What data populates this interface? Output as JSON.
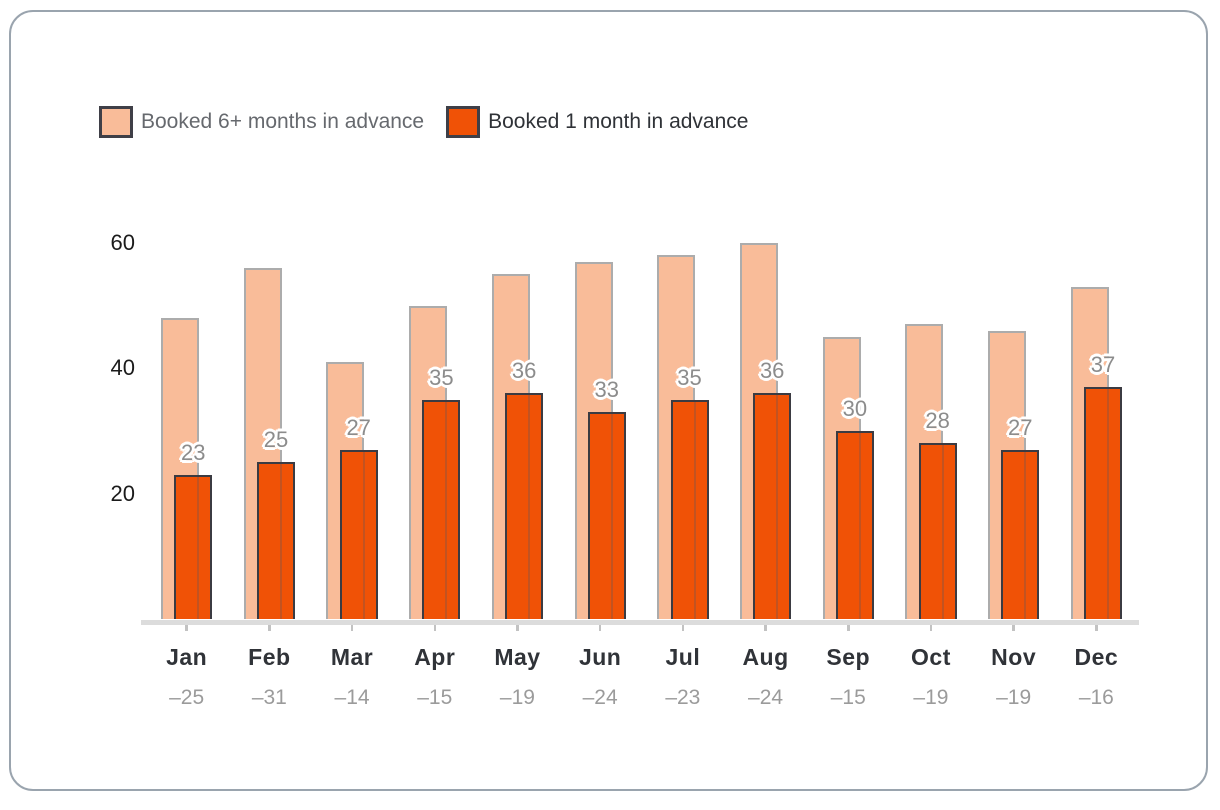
{
  "legend": {
    "items": [
      {
        "id": "booked-6plus",
        "label": "Booked 6+ months in advance",
        "swatch_color": "#F9BC99",
        "swatch_border": "#3F3F47",
        "label_color": "#66696E"
      },
      {
        "id": "booked-1month",
        "label": "Booked 1 month in advance",
        "swatch_color": "#F05206",
        "swatch_border": "#3F3F47",
        "label_color": "#2F3237"
      }
    ]
  },
  "chart_data": {
    "type": "bar",
    "title": "",
    "categories": [
      "Jan",
      "Feb",
      "Mar",
      "Apr",
      "May",
      "Jun",
      "Jul",
      "Aug",
      "Sep",
      "Oct",
      "Nov",
      "Dec"
    ],
    "category_sublabels": [
      "–25",
      "–31",
      "–14",
      "–15",
      "–19",
      "–24",
      "–23",
      "–24",
      "–15",
      "–19",
      "–19",
      "–16"
    ],
    "series": [
      {
        "name": "Booked 6+ months in advance",
        "values": [
          48,
          56,
          41,
          50,
          55,
          57,
          58,
          60,
          45,
          47,
          46,
          53
        ],
        "fill": "#F9BC99",
        "border": "#ACACAC",
        "labels_shown": false
      },
      {
        "name": "Booked 1 month in advance",
        "values": [
          23,
          25,
          27,
          35,
          36,
          33,
          35,
          36,
          30,
          28,
          27,
          37
        ],
        "fill": "#F05206",
        "border": "#3B3B42",
        "labels_shown": true
      }
    ],
    "yticks": [
      20,
      40,
      60
    ],
    "ylim": [
      0,
      64
    ],
    "grid": false,
    "legend_position": "top-left",
    "bar_style": "overlapping",
    "colors": {
      "axis_line": "#DCDCDC",
      "tick": "#C2C2C2",
      "ytick_label": "#1B1B1B",
      "category_label": "#303338",
      "sublabel": "#9B9B9B",
      "data_label": "#8C8C8C",
      "overlap_stripe": "#C25321",
      "card_border": "#9AA4AE"
    }
  }
}
